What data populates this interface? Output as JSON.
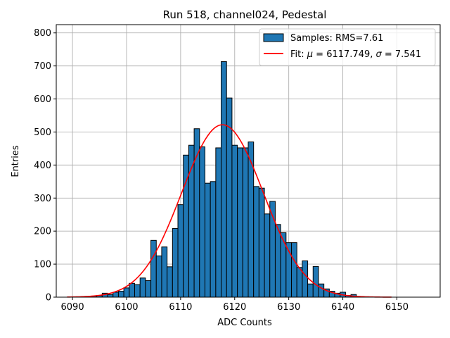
{
  "chart_data": {
    "type": "bar",
    "subtype": "histogram",
    "title": "Run 518, channel024, Pedestal",
    "xlabel": "ADC Counts",
    "ylabel": "Entries",
    "xlim": [
      6087,
      6158
    ],
    "ylim": [
      0,
      825
    ],
    "xticks": [
      6090,
      6100,
      6110,
      6120,
      6130,
      6140,
      6150
    ],
    "yticks": [
      0,
      100,
      200,
      300,
      400,
      500,
      600,
      700,
      800
    ],
    "grid": true,
    "legend_position": "top-right",
    "bin_width": 1,
    "bar_color": "#1f77b4",
    "fit_color": "#ff0000",
    "series": [
      {
        "name": "Samples: RMS=7.61",
        "kind": "histogram",
        "bin_centers": [
          6093,
          6094,
          6095,
          6096,
          6097,
          6098,
          6099,
          6100,
          6101,
          6102,
          6103,
          6104,
          6105,
          6106,
          6107,
          6108,
          6109,
          6110,
          6111,
          6112,
          6113,
          6114,
          6115,
          6116,
          6117,
          6118,
          6119,
          6120,
          6121,
          6122,
          6123,
          6124,
          6125,
          6126,
          6127,
          6128,
          6129,
          6130,
          6131,
          6132,
          6133,
          6134,
          6135,
          6136,
          6137,
          6138,
          6139,
          6140,
          6141,
          6142
        ],
        "values": [
          2,
          3,
          5,
          12,
          8,
          15,
          18,
          28,
          42,
          38,
          58,
          50,
          172,
          125,
          152,
          92,
          208,
          280,
          430,
          460,
          510,
          455,
          345,
          350,
          452,
          713,
          603,
          460,
          452,
          452,
          470,
          335,
          330,
          252,
          290,
          220,
          195,
          165,
          165,
          90,
          110,
          40,
          93,
          40,
          25,
          18,
          12,
          15,
          5,
          8
        ]
      },
      {
        "name": "Fit: μ = 6117.749, σ = 7.541",
        "kind": "gaussian-fit",
        "mu": 6117.749,
        "sigma": 7.541,
        "amplitude": 522,
        "x_range": [
          6089,
          6149
        ]
      }
    ]
  },
  "legend": {
    "samples_label": "Samples: RMS=7.61",
    "fit_label_prefix": "Fit: ",
    "fit_mu_symbol": "μ",
    "fit_mu_value": " = 6117.749, ",
    "fit_sigma_symbol": "σ",
    "fit_sigma_value": " = 7.541"
  }
}
